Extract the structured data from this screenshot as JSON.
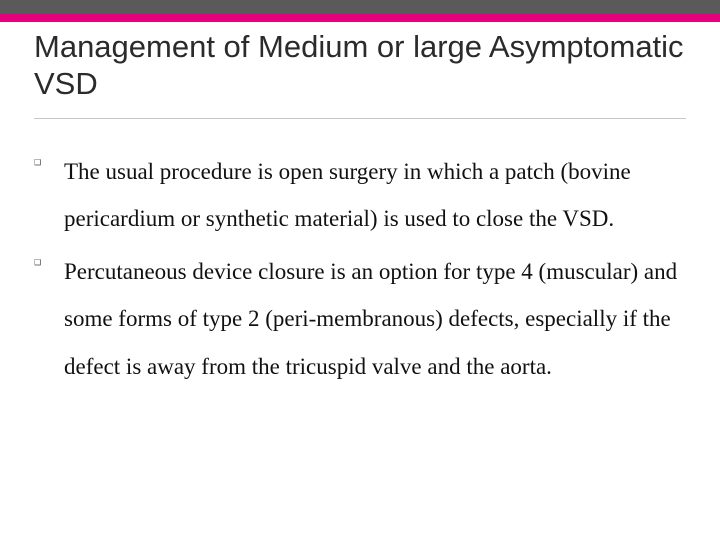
{
  "colors": {
    "band_gray": "#5a5a5a",
    "band_pink": "#e6007e",
    "title_color": "#2b2b2b",
    "underline": "#c7c7c7",
    "body_text": "#111111",
    "background": "#ffffff"
  },
  "typography": {
    "title_font": "Trebuchet MS",
    "title_size_pt": 23,
    "body_font": "Georgia",
    "body_size_pt": 17,
    "body_line_height": 2.05
  },
  "title": "Management of Medium or large Asymptomatic VSD",
  "bullets": [
    "The usual procedure is open surgery in which a patch (bovine pericardium or synthetic material) is used to close the VSD.",
    "Percutaneous device closure is an option for type 4 (muscular) and some forms of type 2 (peri-membranous) defects, especially if the defect is away from the tricuspid valve and the aorta."
  ],
  "bullet_marker": "❑"
}
